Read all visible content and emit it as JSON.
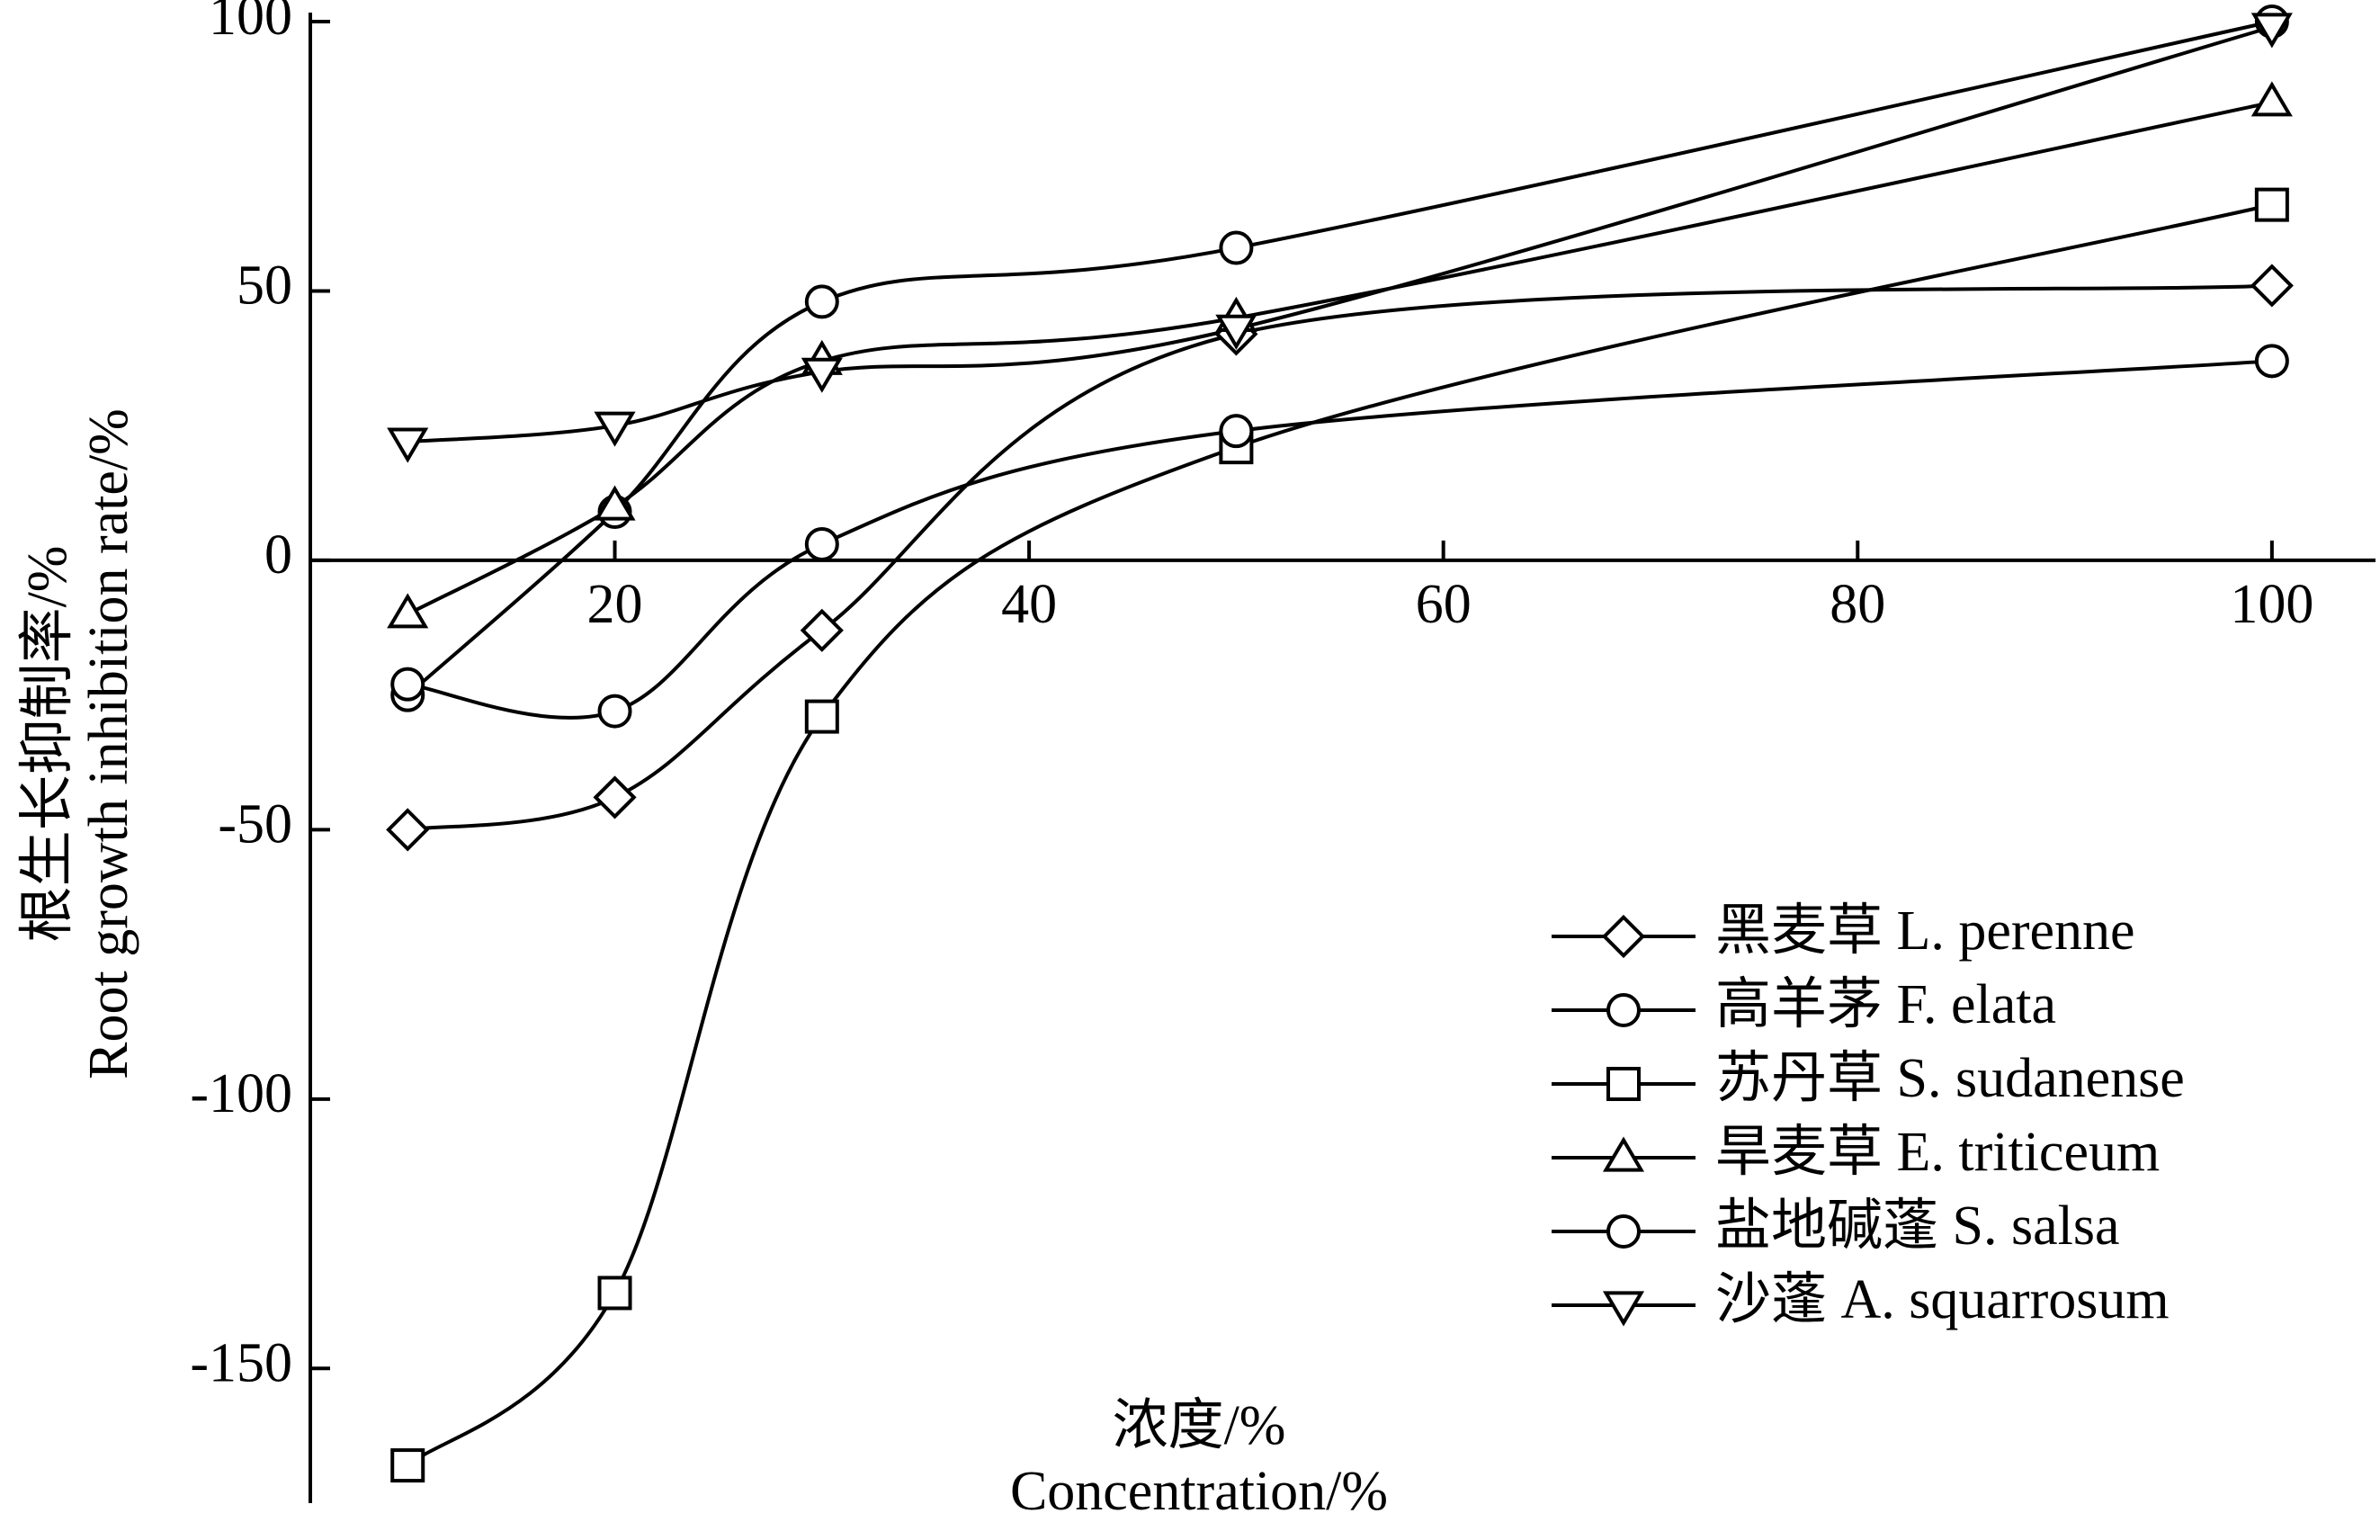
{
  "chart_data": {
    "type": "line",
    "ylabel": [
      "根生长抑制率/%",
      "Root growth inhibition rate/%"
    ],
    "xlabel": [
      "浓度/%",
      "Concentration/%"
    ],
    "x": [
      10,
      20,
      30,
      50,
      100
    ],
    "series": [
      {
        "name": "黑麦草 L. perenne",
        "marker": "diamond",
        "color": "#000000",
        "values": [
          -50,
          -44,
          -13,
          42,
          51
        ]
      },
      {
        "name": "高羊茅 F. elata",
        "marker": "circle",
        "color": "#000000",
        "values": [
          -25,
          9,
          48,
          58,
          100
        ]
      },
      {
        "name": "苏丹草 S. sudanense",
        "marker": "square",
        "color": "#000000",
        "values": [
          -168,
          -136,
          -29,
          21,
          66
        ]
      },
      {
        "name": "旱麦草 E. triticeum",
        "marker": "triangle-up",
        "color": "#000000",
        "values": [
          -10,
          10,
          37,
          45,
          85
        ]
      },
      {
        "name": "盐地碱蓬 S. salsa",
        "marker": "circle",
        "color": "#000000",
        "values": [
          -23,
          -28,
          3,
          24,
          37
        ]
      },
      {
        "name": "沙蓬 A. squarrosum",
        "marker": "triangle-down",
        "color": "#000000",
        "values": [
          22,
          25,
          35,
          43,
          99
        ]
      }
    ],
    "xlim": [
      5.3,
      105
    ],
    "xticks": [
      20,
      40,
      60,
      80,
      100
    ],
    "ylim": [
      -175,
      100
    ],
    "yticks": [
      -150,
      -100,
      -50,
      0,
      50,
      100
    ],
    "smooth": true,
    "legend": "lower right"
  }
}
